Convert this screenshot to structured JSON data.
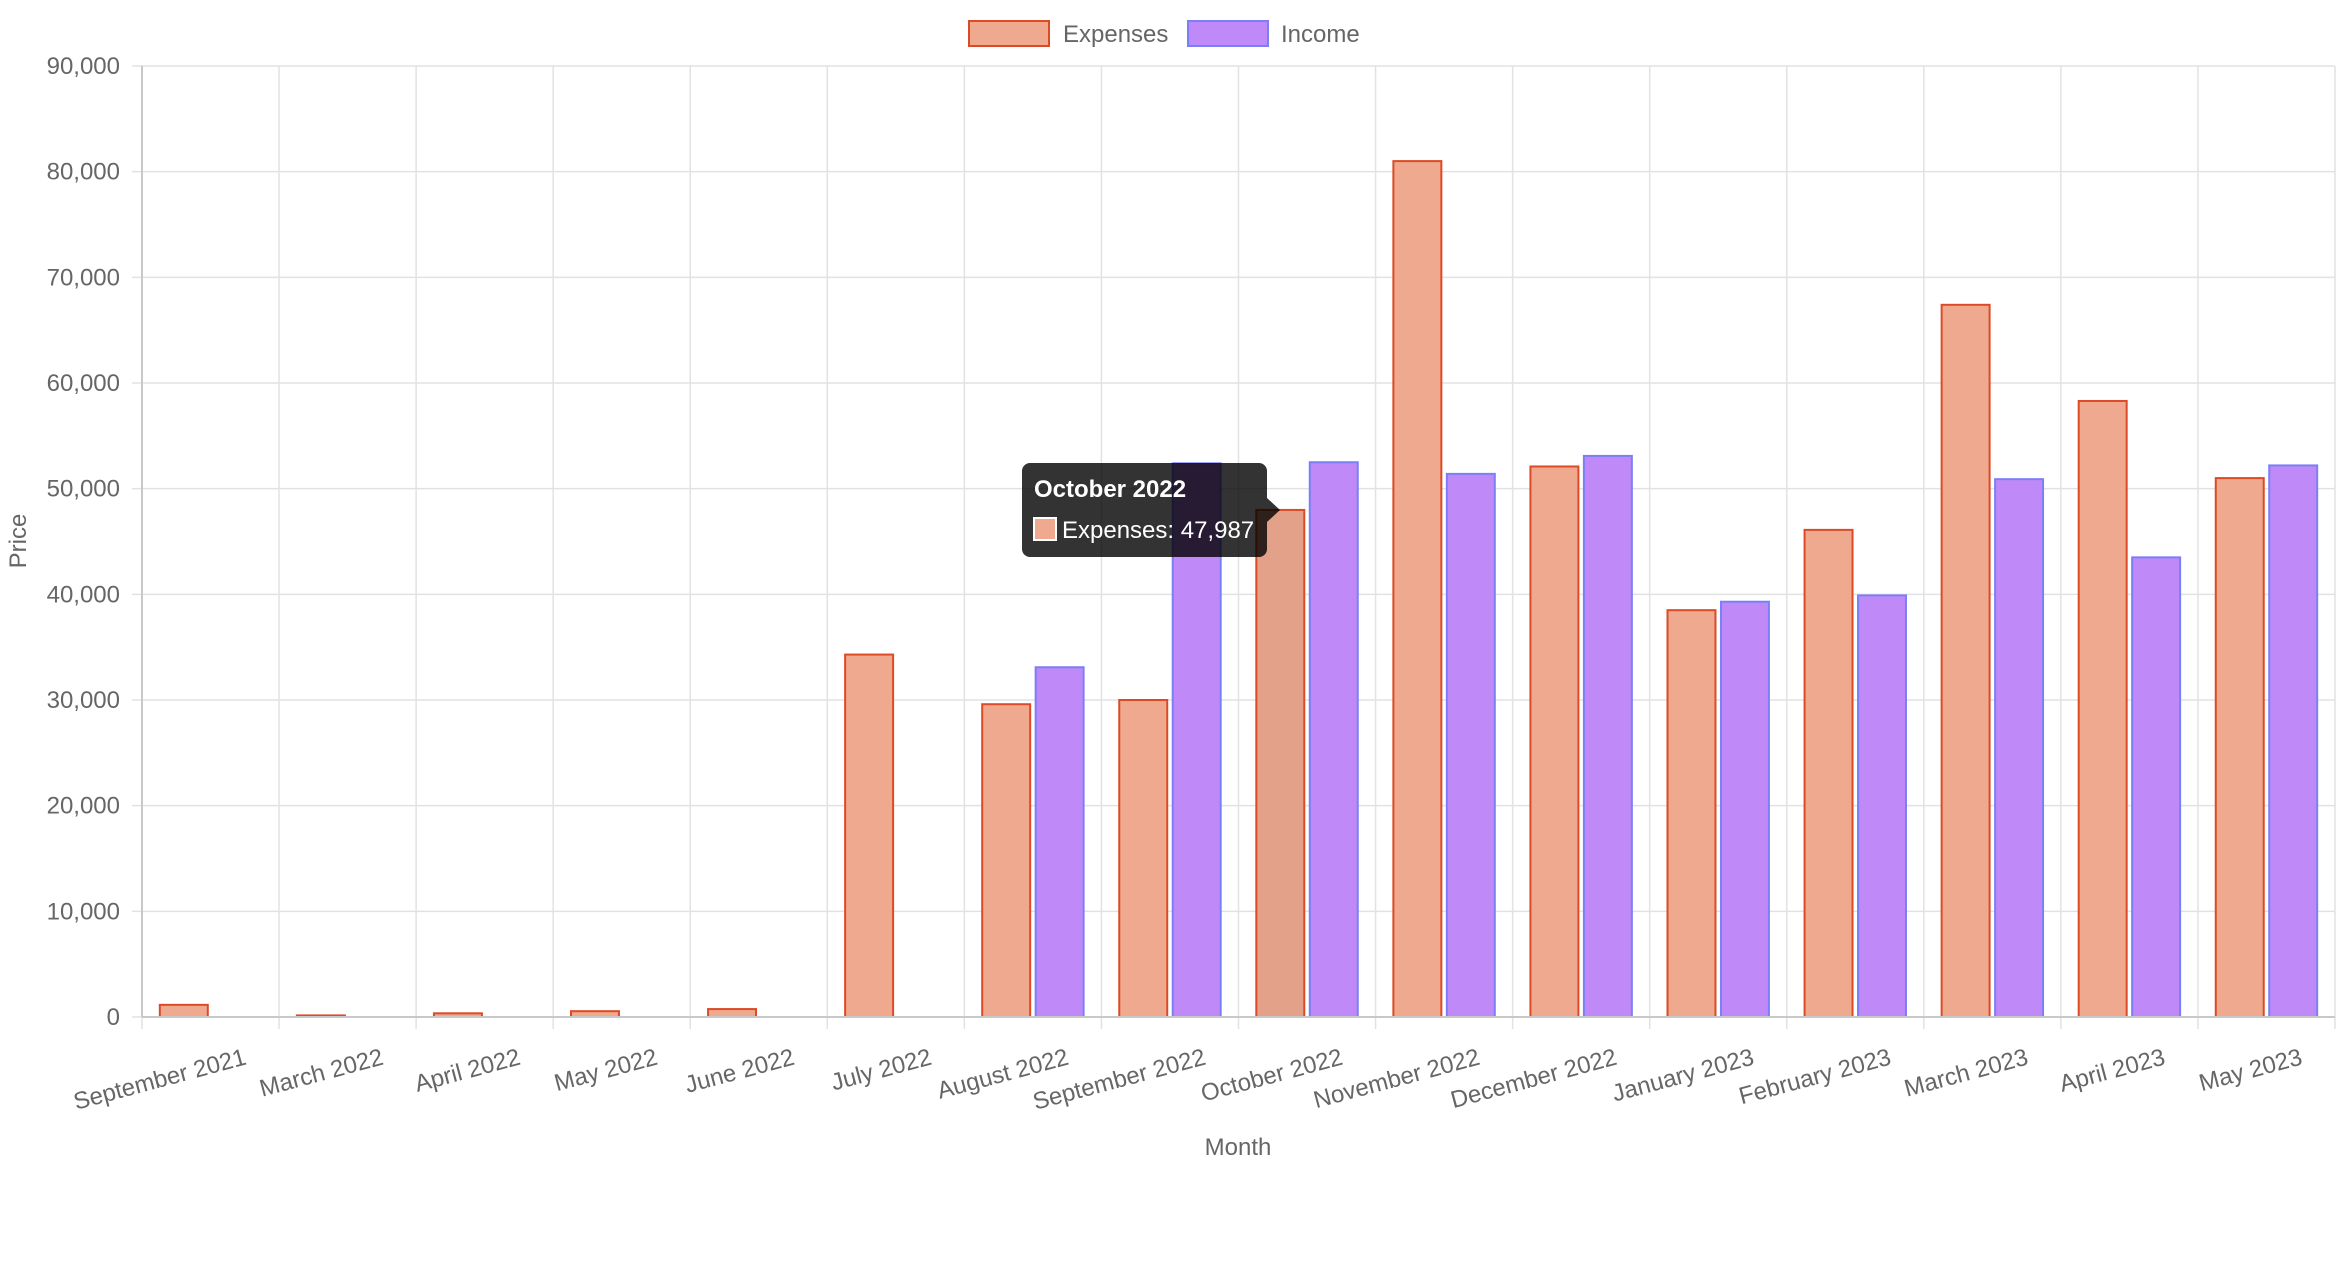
{
  "chart_data": {
    "type": "bar",
    "categories": [
      "September 2021",
      "March 2022",
      "April 2022",
      "May 2022",
      "June 2022",
      "July 2022",
      "August 2022",
      "September 2022",
      "October 2022",
      "November 2022",
      "December 2022",
      "January 2023",
      "February 2023",
      "March 2023",
      "April 2023",
      "May 2023"
    ],
    "series": [
      {
        "name": "Expenses",
        "fill": "#eea98e",
        "stroke": "#dd4a26",
        "values": [
          1150,
          150,
          350,
          550,
          750,
          34300,
          29600,
          30000,
          47987,
          81000,
          52100,
          38500,
          46100,
          67400,
          58300,
          51000
        ]
      },
      {
        "name": "Income",
        "fill": "#bf89f7",
        "stroke": "#7b7ff7",
        "values": [
          0,
          0,
          0,
          0,
          0,
          0,
          33100,
          52400,
          52500,
          51400,
          53100,
          39300,
          39900,
          50900,
          43500,
          52200
        ]
      }
    ],
    "yticks": [
      "0",
      "10,000",
      "20,000",
      "30,000",
      "40,000",
      "50,000",
      "60,000",
      "70,000",
      "80,000",
      "90,000"
    ],
    "ylim": [
      0,
      90000
    ],
    "xlabel": "Month",
    "ylabel": "Price",
    "grid": true,
    "legend_position": "top-center",
    "tooltip": {
      "title": "October 2022",
      "body": "Expenses: 47,987",
      "category_index": 8,
      "series_index": 0
    }
  }
}
